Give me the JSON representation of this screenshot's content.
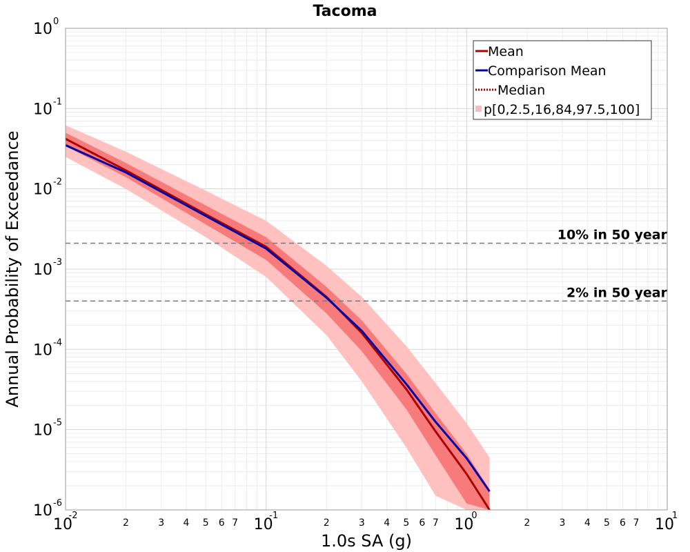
{
  "chart_data": {
    "type": "line",
    "title": "Tacoma",
    "xlabel": "1.0s SA (g)",
    "ylabel": "Annual Probability of Exceedance",
    "xscale": "log",
    "yscale": "log",
    "xlim": [
      0.01,
      10
    ],
    "ylim": [
      1e-06,
      1
    ],
    "grid": true,
    "legend_position": "top-right",
    "x_major_ticks": [
      {
        "base": "10",
        "exp": "-2"
      },
      {
        "base": "10",
        "exp": "-1"
      },
      {
        "base": "10",
        "exp": "0"
      },
      {
        "base": "10",
        "exp": "1"
      }
    ],
    "x_minor_tick_labels": [
      "2",
      "3",
      "4",
      "5",
      "6",
      "7"
    ],
    "y_major_ticks": [
      {
        "base": "10",
        "exp": "0"
      },
      {
        "base": "10",
        "exp": "-1"
      },
      {
        "base": "10",
        "exp": "-2"
      },
      {
        "base": "10",
        "exp": "-3"
      },
      {
        "base": "10",
        "exp": "-4"
      },
      {
        "base": "10",
        "exp": "-5"
      },
      {
        "base": "10",
        "exp": "-6"
      }
    ],
    "x": [
      0.01,
      0.02,
      0.05,
      0.1,
      0.2,
      0.3,
      0.5,
      0.7,
      1.0,
      1.3
    ],
    "series": [
      {
        "name": "Mean",
        "color": "#aa0000",
        "style": "solid",
        "y": [
          0.042,
          0.017,
          0.0048,
          0.0019,
          0.00045,
          0.00016,
          3.2e-05,
          9.5e-06,
          2.8e-06,
          1e-06
        ]
      },
      {
        "name": "Comparison Mean",
        "color": "#0000aa",
        "style": "solid",
        "y": [
          0.035,
          0.016,
          0.0046,
          0.0018,
          0.00044,
          0.00017,
          3.7e-05,
          1.25e-05,
          4.4e-06,
          1.7e-06
        ]
      },
      {
        "name": "Median",
        "color": "#aa0000",
        "style": "dotted",
        "y": [
          0.042,
          0.017,
          0.0048,
          0.0019,
          0.00045,
          0.00016,
          3.2e-05,
          9.5e-06,
          2.8e-06,
          1e-06
        ]
      }
    ],
    "bands": {
      "name": "p[0,2.5,16,84,97.5,100]",
      "color": "#ffbbbb",
      "outer": {
        "lower": [
          0.025,
          0.01,
          0.0025,
          0.0008,
          0.00015,
          4e-05,
          6e-06,
          1.5e-06,
          1e-06,
          1e-06
        ],
        "upper": [
          0.062,
          0.029,
          0.0095,
          0.004,
          0.0011,
          0.00045,
          0.00011,
          3.8e-05,
          1.2e-05,
          4.5e-06
        ]
      },
      "inner": {
        "lower": [
          0.034,
          0.014,
          0.0036,
          0.0013,
          0.00028,
          9.5e-05,
          1.8e-05,
          4.8e-06,
          1.2e-06,
          1e-06
        ],
        "upper": [
          0.05,
          0.021,
          0.0062,
          0.0025,
          0.0006,
          0.00023,
          5e-05,
          1.6e-05,
          5e-06,
          1.8e-06
        ]
      }
    },
    "reference_lines": [
      {
        "label": "10% in 50 year",
        "y": 0.0021
      },
      {
        "label": "2% in 50 year",
        "y": 0.0004
      }
    ]
  }
}
